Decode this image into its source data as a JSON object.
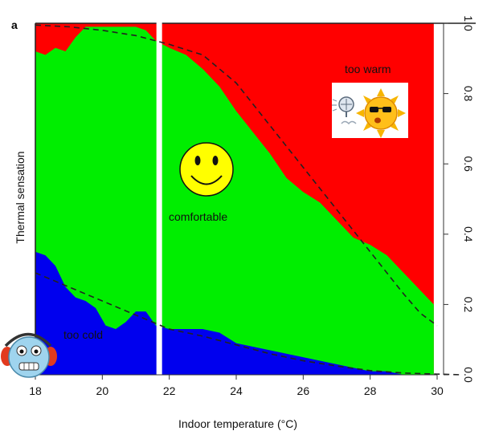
{
  "panel_label": "a",
  "chart_data": {
    "type": "area",
    "title": "",
    "xlabel": "Indoor temperature (°C)",
    "ylabel": "Thermal sensation",
    "xlim": [
      18,
      30
    ],
    "ylim": [
      0,
      1
    ],
    "x_ticks": [
      18,
      20,
      22,
      24,
      26,
      28,
      30
    ],
    "x_tick_labels": [
      "18",
      "20",
      "22",
      "24",
      "26",
      "28",
      "30"
    ],
    "y_ticks": [
      0.0,
      0.2,
      0.4,
      0.6,
      0.8,
      1.0
    ],
    "y_tick_labels": [
      "0.0",
      "0.2",
      "0.4",
      "0.6",
      "0.8",
      "1.0"
    ],
    "gap_x": 21.7,
    "colors": {
      "too_cold": "#0000ee",
      "comfortable": "#00ee00",
      "too_warm": "#ff0000",
      "divider": "#ffffff"
    },
    "series": [
      {
        "name": "too cold (upper boundary)",
        "x": [
          18.0,
          18.3,
          18.6,
          18.9,
          19.2,
          19.5,
          19.8,
          20.1,
          20.4,
          20.7,
          21.0,
          21.3,
          21.6,
          22.0,
          22.5,
          23.0,
          23.5,
          24.0,
          24.5,
          25.0,
          25.5,
          26.0,
          26.5,
          27.0,
          27.5,
          28.0,
          28.5,
          29.0,
          29.5,
          29.9
        ],
        "values": [
          0.35,
          0.34,
          0.31,
          0.25,
          0.22,
          0.21,
          0.19,
          0.14,
          0.13,
          0.15,
          0.18,
          0.18,
          0.14,
          0.13,
          0.13,
          0.13,
          0.12,
          0.09,
          0.08,
          0.07,
          0.06,
          0.05,
          0.04,
          0.03,
          0.02,
          0.01,
          0.01,
          0.0,
          0.0,
          0.0
        ]
      },
      {
        "name": "comfortable (upper boundary)",
        "x": [
          18.0,
          18.3,
          18.6,
          18.9,
          19.2,
          19.5,
          19.8,
          20.1,
          20.4,
          20.7,
          21.0,
          21.3,
          21.6,
          22.0,
          22.5,
          23.0,
          23.5,
          24.0,
          24.5,
          25.0,
          25.5,
          26.0,
          26.5,
          27.0,
          27.5,
          28.0,
          28.5,
          29.0,
          29.5,
          29.9
        ],
        "values": [
          0.92,
          0.91,
          0.93,
          0.92,
          0.96,
          0.99,
          0.99,
          0.99,
          0.99,
          0.99,
          0.99,
          0.98,
          0.95,
          0.93,
          0.91,
          0.87,
          0.82,
          0.75,
          0.69,
          0.63,
          0.56,
          0.52,
          0.49,
          0.44,
          0.39,
          0.37,
          0.34,
          0.29,
          0.24,
          0.2
        ]
      },
      {
        "name": "too warm (fitted, dashed)",
        "x": [
          18.0,
          19.0,
          20.0,
          21.0,
          22.0,
          23.0,
          24.0,
          24.5,
          25.0,
          25.5,
          26.0,
          26.5,
          27.0,
          27.5,
          28.0,
          28.5,
          29.0,
          29.5,
          30.0
        ],
        "values": [
          0.995,
          0.99,
          0.98,
          0.965,
          0.94,
          0.91,
          0.83,
          0.77,
          0.71,
          0.65,
          0.59,
          0.53,
          0.47,
          0.41,
          0.35,
          0.29,
          0.23,
          0.175,
          0.14
        ]
      },
      {
        "name": "too cold (fitted, dashed)",
        "x": [
          18.0,
          19.0,
          20.0,
          21.0,
          22.0,
          23.0,
          24.0,
          25.0,
          26.0,
          27.0,
          28.0,
          29.0,
          30.0
        ],
        "values": [
          0.29,
          0.25,
          0.21,
          0.17,
          0.13,
          0.11,
          0.085,
          0.06,
          0.04,
          0.025,
          0.012,
          0.005,
          0.002
        ]
      }
    ],
    "annotations": [
      "too warm",
      "comfortable",
      "too cold"
    ]
  }
}
